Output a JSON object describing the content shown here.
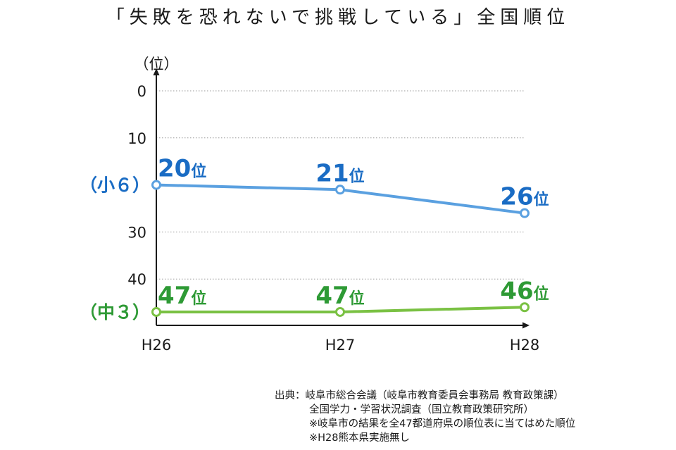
{
  "chart_data": {
    "type": "line",
    "title": "「失敗を恐れないで挑戦している」全国順位",
    "ylabel": "（位）",
    "y_axis_inverted": true,
    "ylim": [
      0,
      48
    ],
    "yticks": [
      "0",
      "10",
      "30",
      "40"
    ],
    "categories": [
      "H26",
      "H27",
      "H28"
    ],
    "grid": true,
    "series": [
      {
        "name": "（小６）",
        "values": [
          20,
          21,
          26
        ],
        "labels": [
          "20位",
          "21位",
          "26位"
        ],
        "color": "#5aa0e0",
        "label_color": "#1a6cc4"
      },
      {
        "name": "（中３）",
        "values": [
          47,
          47,
          46
        ],
        "labels": [
          "47位",
          "47位",
          "46位"
        ],
        "color": "#7ac143",
        "label_color": "#2e9a35"
      }
    ]
  },
  "source": {
    "lines": [
      "出典：岐阜市総合会議（岐阜市教育委員会事務局 教育政策課）",
      "全国学力・学習状況調査（国立教育政策研究所）",
      "※岐阜市の結果を全47都道府県の順位表に当てはめた順位",
      "※H28熊本県実施無し"
    ]
  }
}
